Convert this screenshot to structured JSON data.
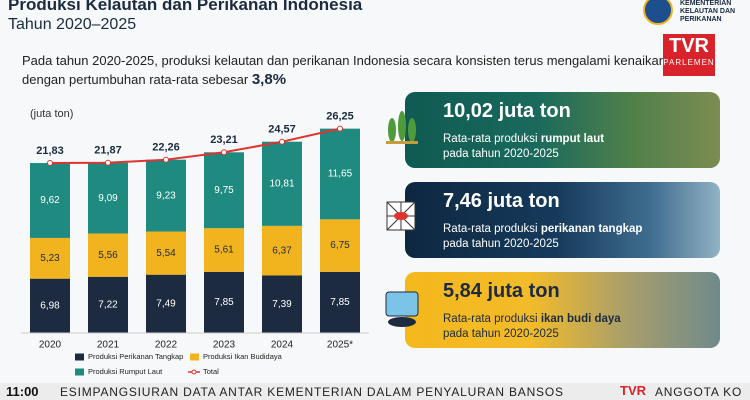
{
  "header": {
    "title": "Produksi Kelautan dan Perikanan Indonesia",
    "subtitle": "Tahun 2020–2025"
  },
  "intro": {
    "text": "Pada tahun 2020-2025, produksi kelautan dan perikanan Indonesia secara konsisten terus mengalami kenaikan dengan pertumbuhan rata-rata sebesar",
    "highlight": "3,8%"
  },
  "logo": {
    "ministry": "KEMENTERIAN KELAUTAN DAN PERIKANAN",
    "channel": "TVR",
    "channel_sub": "PARLEMEN"
  },
  "chart_data": {
    "type": "bar",
    "stacked": true,
    "unit_label": "(juta ton)",
    "categories": [
      "2020",
      "2021",
      "2022",
      "2023",
      "2024",
      "2025*"
    ],
    "ylim": [
      0,
      28
    ],
    "series": [
      {
        "name": "Produksi Perikanan Tangkap",
        "color": "#1c2b40",
        "values": [
          6.98,
          7.22,
          7.49,
          7.85,
          7.39,
          7.85
        ],
        "value_labels": [
          "6,98",
          "7,22",
          "7,49",
          "7,85",
          "7,39",
          "7,85"
        ]
      },
      {
        "name": "Produksi Ikan Budidaya",
        "color": "#f2b41e",
        "values": [
          5.23,
          5.56,
          5.54,
          5.61,
          6.37,
          6.75
        ],
        "value_labels": [
          "5,23",
          "5,56",
          "5,54",
          "5,61",
          "6,37",
          "6,75"
        ]
      },
      {
        "name": "Produksi Rumput Laut",
        "color": "#1f8a80",
        "values": [
          9.62,
          9.09,
          9.23,
          9.75,
          10.81,
          11.65
        ],
        "value_labels": [
          "9,62",
          "9,09",
          "9,23",
          "9,75",
          "10,81",
          "11,65"
        ]
      },
      {
        "name": "Total",
        "type": "line",
        "color": "#e0322e",
        "values": [
          21.83,
          21.87,
          22.26,
          23.21,
          24.57,
          26.25
        ],
        "value_labels": [
          "21,83",
          "21,87",
          "22,26",
          "23,21",
          "24,57",
          "26,25"
        ]
      }
    ]
  },
  "cards": [
    {
      "value": "10,02 juta ton",
      "prefix": "Rata-rata produksi",
      "highlight": "rumput laut",
      "suffix": "pada tahun 2020-2025"
    },
    {
      "value": "7,46 juta ton",
      "prefix": "Rata-rata produksi",
      "highlight": "perikanan tangkap",
      "suffix": "pada tahun 2020-2025"
    },
    {
      "value": "5,84 juta ton",
      "prefix": "Rata-rata produksi",
      "highlight": "ikan budi daya",
      "suffix": "pada tahun 2020-2025"
    }
  ],
  "ticker": {
    "time": "11:00",
    "text": "ESIMPANGSIURAN DATA ANTAR KEMENTERIAN DALAM PENYALURAN BANSOS",
    "logo": "TVR",
    "next": "ANGGOTA KO"
  }
}
